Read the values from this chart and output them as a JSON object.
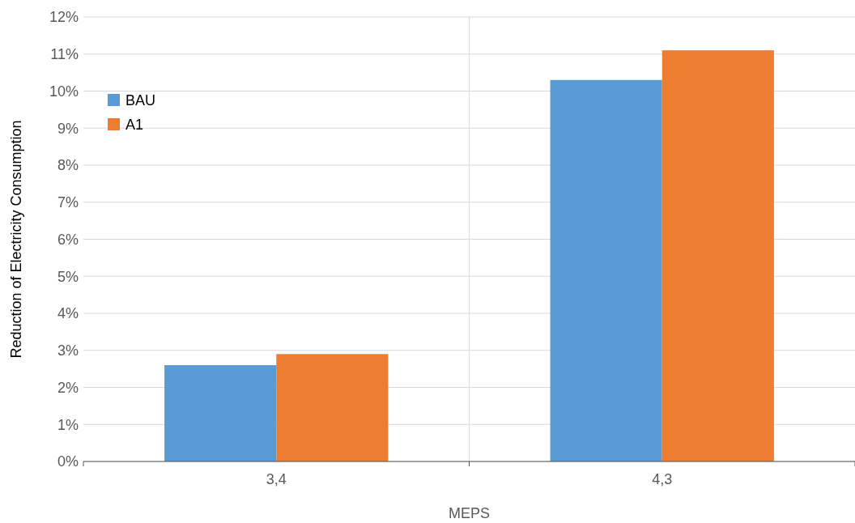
{
  "chart_data": {
    "type": "bar",
    "xlabel": "MEPS",
    "ylabel": "Reduction of Electricity Consumption",
    "categories": [
      "3,4",
      "4,3"
    ],
    "series": [
      {
        "name": "BAU",
        "color": "#5b9bd5",
        "values": [
          2.6,
          10.3
        ]
      },
      {
        "name": "A1",
        "color": "#ed7d31",
        "values": [
          2.9,
          11.1
        ]
      }
    ],
    "ylim": [
      0,
      12
    ],
    "yticks": [
      {
        "value": 0,
        "label": "0%"
      },
      {
        "value": 1,
        "label": "1%"
      },
      {
        "value": 2,
        "label": "2%"
      },
      {
        "value": 3,
        "label": "3%"
      },
      {
        "value": 4,
        "label": "4%"
      },
      {
        "value": 5,
        "label": "5%"
      },
      {
        "value": 6,
        "label": "6%"
      },
      {
        "value": 7,
        "label": "7%"
      },
      {
        "value": 8,
        "label": "8%"
      },
      {
        "value": 9,
        "label": "9%"
      },
      {
        "value": 10,
        "label": "10%"
      },
      {
        "value": 11,
        "label": "11%"
      },
      {
        "value": 12,
        "label": "12%"
      }
    ],
    "grid": true,
    "legend": "top left"
  }
}
